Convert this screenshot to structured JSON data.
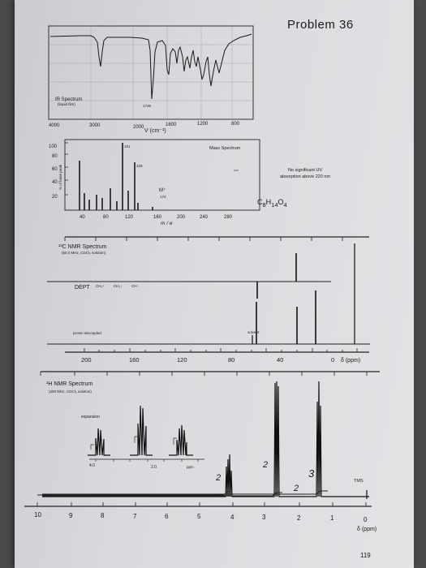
{
  "page": {
    "problem_title": "Problem 36",
    "page_number": "119"
  },
  "ir": {
    "title": "IR Spectrum",
    "subtitle": "(liquid film)",
    "peak_label": "1736",
    "x_ticks": [
      "4000",
      "3000",
      "2000",
      "1600",
      "1200",
      "800"
    ],
    "x_unit": "V (cm⁻¹)"
  },
  "mass": {
    "title": "Mass Spectrum",
    "y_axis_label": "% of base peak",
    "y_ticks": [
      "100",
      "80",
      "60",
      "40",
      "20"
    ],
    "x_ticks": [
      "40",
      "80",
      "120",
      "160",
      "200",
      "240",
      "280"
    ],
    "x_unit": "m / e",
    "peak_labels": [
      "101",
      "129"
    ],
    "molecular_ion": "M⁺",
    "molecular_ion_mz": "174",
    "formula_html": "C<sub>8</sub>H<sub>14</sub>O<sub>4</sub>"
  },
  "uv": {
    "line1": "No significant UV",
    "line2": "absorption above 220 nm"
  },
  "c13": {
    "title": "¹³C NMR Spectrum",
    "subtitle": "(50.0 MHz, CDCl₃ solution)",
    "dept_label": "DEPT",
    "dept_types": [
      "CH₂↑",
      "CH₃↑",
      "CH↑"
    ],
    "decoupled_label": "proton decoupled",
    "solvent_label": "solvent",
    "x_ticks": [
      "200",
      "160",
      "120",
      "80",
      "40",
      "0"
    ],
    "x_unit": "δ (ppm)"
  },
  "h1": {
    "title": "¹H NMR Spectrum",
    "subtitle": "(200 MHz, CDCl₃ solution)",
    "expansion_label": "expansion",
    "expansion_ticks": [
      "4.0",
      "2.0"
    ],
    "expansion_unit": "ppm",
    "tms_label": "TMS",
    "x_ticks": [
      "10",
      "9",
      "8",
      "7",
      "6",
      "5",
      "4",
      "3",
      "2",
      "1",
      "0"
    ],
    "x_unit": "δ (ppm)",
    "handwritten_integrals": [
      "2",
      "2",
      "2",
      "3"
    ]
  }
}
